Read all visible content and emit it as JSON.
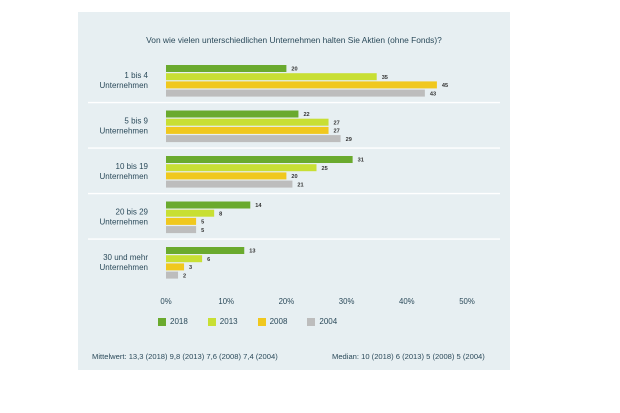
{
  "chart_data": {
    "type": "bar",
    "orientation": "horizontal",
    "title": "Von wie vielen unterschiedlichen Unternehmen halten Sie Aktien (ohne Fonds)?",
    "categories": [
      [
        "1 bis 4",
        "Unternehmen"
      ],
      [
        "5 bis 9",
        "Unternehmen"
      ],
      [
        "10 bis 19",
        "Unternehmen"
      ],
      [
        "20 bis 29",
        "Unternehmen"
      ],
      [
        "30 und mehr",
        "Unternehmen"
      ]
    ],
    "series": [
      {
        "name": "2018",
        "color": "#6aaa2e",
        "values": [
          20,
          22,
          31,
          14,
          13
        ]
      },
      {
        "name": "2013",
        "color": "#c8df34",
        "values": [
          35,
          27,
          25,
          8,
          6
        ]
      },
      {
        "name": "2008",
        "color": "#f0c81e",
        "values": [
          45,
          27,
          20,
          5,
          3
        ]
      },
      {
        "name": "2004",
        "color": "#bdbdbd",
        "values": [
          43,
          29,
          21,
          5,
          2
        ]
      }
    ],
    "xlim": [
      0,
      50
    ],
    "xticks": [
      "0%",
      "10%",
      "20%",
      "30%",
      "40%",
      "50%"
    ],
    "xtick_values": [
      0,
      10,
      20,
      30,
      40,
      50
    ],
    "legend_position": "bottom",
    "grid": false
  },
  "footer": {
    "mean": "Mittelwert: 13,3 (2018)  9,8 (2013)  7,6 (2008)  7,4 (2004)",
    "median": "Median:  10 (2018)    6 (2013)    5 (2008)    5 (2004)"
  },
  "colors": {
    "panel_background": "#e7eff2",
    "separator": "#ffffff"
  }
}
